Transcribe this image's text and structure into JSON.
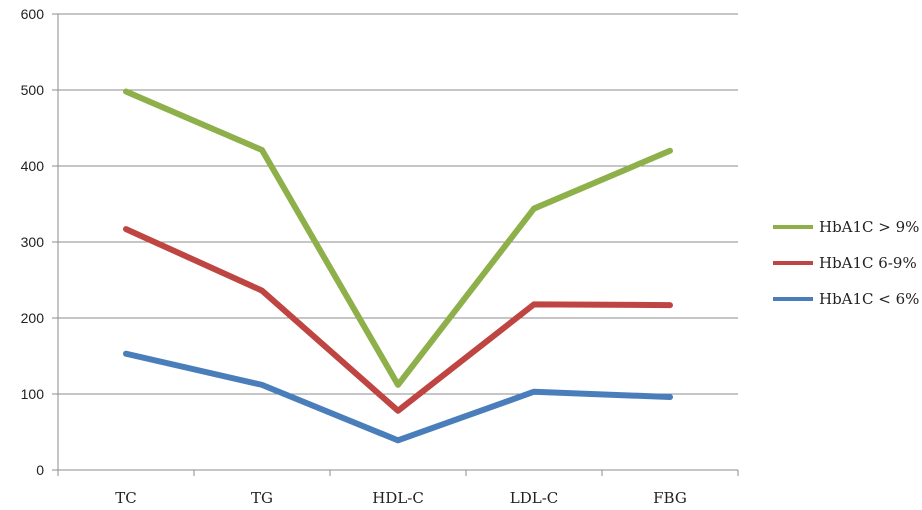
{
  "chart_data": {
    "type": "line",
    "title": "",
    "xlabel": "",
    "ylabel": "",
    "categories": [
      "TC",
      "TG",
      "HDL-C",
      "LDL-C",
      "FBG"
    ],
    "ylim": [
      0,
      600
    ],
    "yticks": [
      0,
      100,
      200,
      300,
      400,
      500,
      600
    ],
    "grid": "horizontal",
    "legend_position": "right",
    "series": [
      {
        "name": "HbA1C > 9%",
        "color": "#8db04a",
        "values": [
          498,
          421,
          112,
          344,
          420
        ]
      },
      {
        "name": "HbA1C 6-9%",
        "color": "#bf4542",
        "values": [
          317,
          236,
          78,
          218,
          217
        ]
      },
      {
        "name": "HbA1C < 6%",
        "color": "#4a7ebb",
        "values": [
          153,
          112,
          39,
          103,
          96
        ]
      }
    ]
  }
}
